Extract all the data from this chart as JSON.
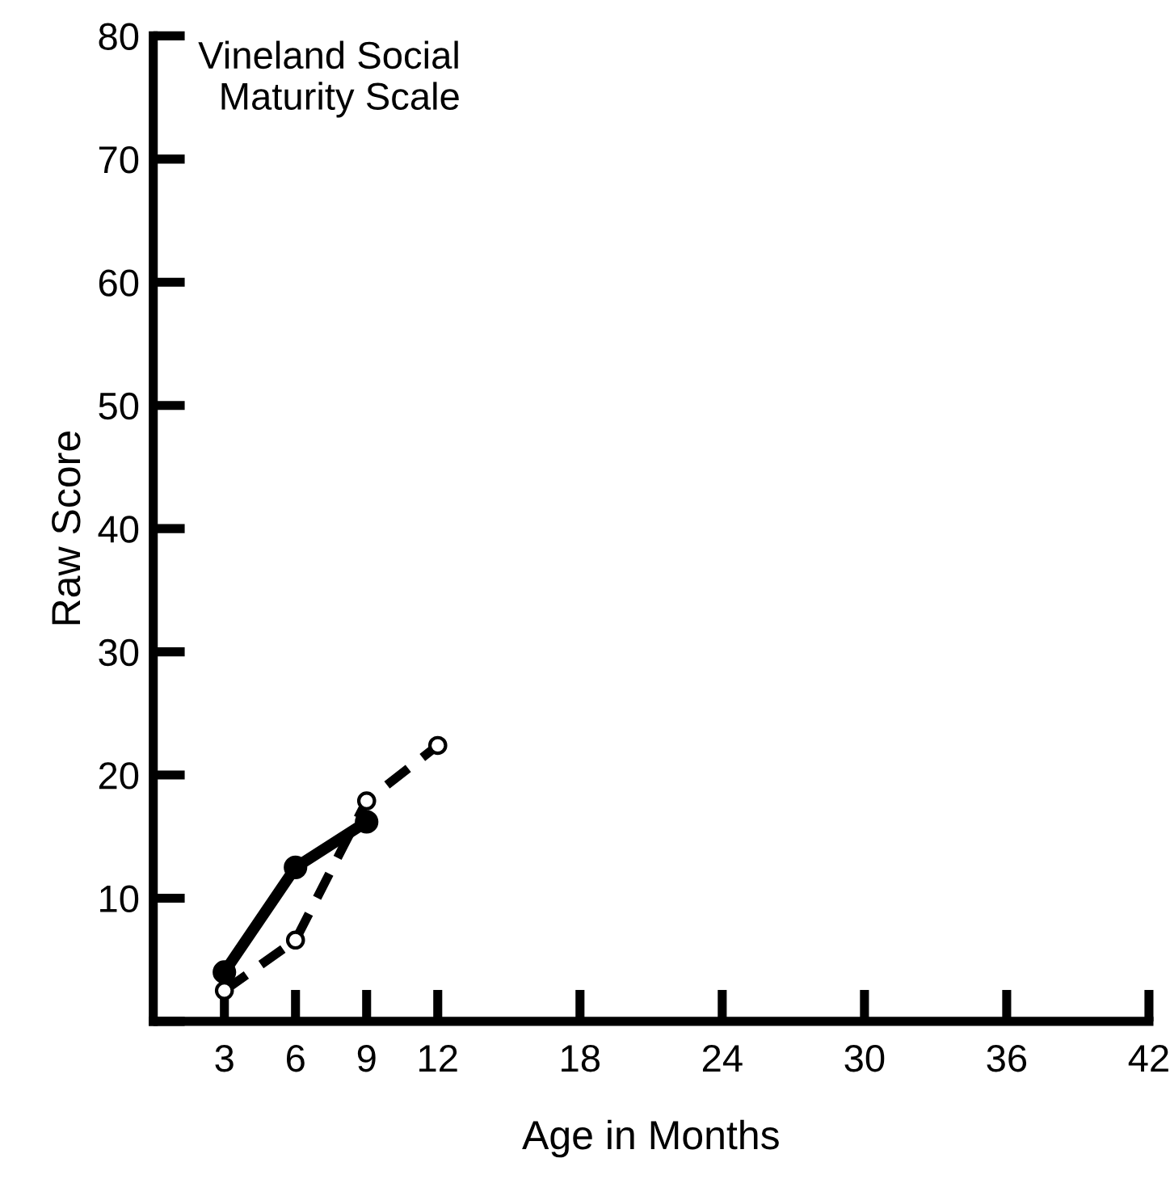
{
  "chart_data": {
    "type": "line",
    "title": "Vineland Social\nMaturity Scale",
    "xlabel": "Age in Months",
    "ylabel": "Raw Score",
    "series": [
      {
        "color": "#000000",
        "line_style": "solid",
        "x": [
          3,
          6,
          9
        ],
        "values": [
          4,
          12.5,
          16.2
        ]
      },
      {
        "color": "#000000",
        "line_style": "dashed",
        "x": [
          3,
          6,
          9,
          12
        ],
        "values": [
          2.5,
          6.6,
          17.9,
          22.4
        ]
      }
    ],
    "xlim": [
      0,
      42
    ],
    "xticks": [
      3,
      6,
      9,
      12,
      18,
      24,
      30,
      36,
      42
    ],
    "ylim": [
      0,
      80
    ],
    "yticks": [
      {
        "value": 0,
        "label": null
      },
      10,
      20,
      30,
      40,
      50,
      60,
      70,
      80
    ],
    "marker": "circle",
    "grid": false,
    "legend": false
  }
}
